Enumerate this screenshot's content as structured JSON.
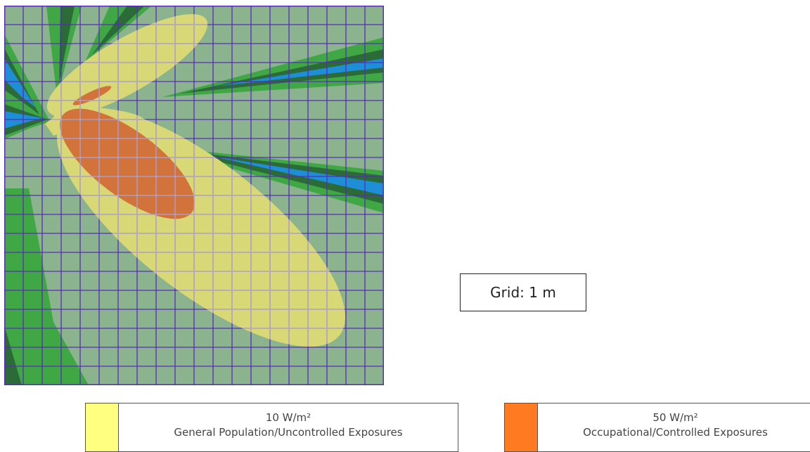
{
  "colors": {
    "background_region": "#8ab38e",
    "green_mid": "#3fa844",
    "green_dark": "#2a6b38",
    "blue": "#1e8fd6",
    "yellow_zone": "#d9d877",
    "orange_zone": "#d2733b",
    "grid_line": "#5a2bb8",
    "grid_line_in_zone": "#b8aecb",
    "legend_general_swatch": "#ffff80",
    "legend_occupational_swatch": "#ff7a20"
  },
  "grid_label": "Grid: 1 m",
  "legend": {
    "general": {
      "value": "10 W/m²",
      "description": "General Population/Uncontrolled Exposures"
    },
    "occupational": {
      "value": "50 W/m²",
      "description": "Occupational/Controlled Exposures"
    }
  }
}
